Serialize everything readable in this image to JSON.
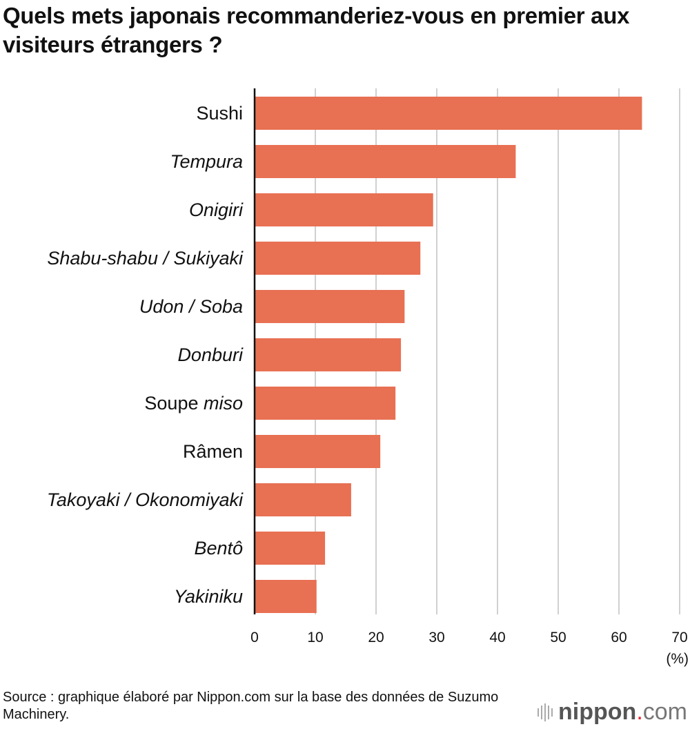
{
  "title": "Quels mets japonais recommanderiez-vous en premier aux visiteurs étrangers ?",
  "chart_data": {
    "type": "bar",
    "orientation": "horizontal",
    "title": "Quels mets japonais recommanderiez-vous en premier aux visiteurs étrangers ?",
    "categories": [
      [
        {
          "t": "Sushi",
          "i": false
        }
      ],
      [
        {
          "t": "Tempura",
          "i": true
        }
      ],
      [
        {
          "t": "Onigiri",
          "i": true
        }
      ],
      [
        {
          "t": "Shabu-shabu / Sukiyaki",
          "i": true
        }
      ],
      [
        {
          "t": "Udon / Soba",
          "i": true
        }
      ],
      [
        {
          "t": "Donburi",
          "i": true
        }
      ],
      [
        {
          "t": "Soupe ",
          "i": false
        },
        {
          "t": "miso",
          "i": true
        }
      ],
      [
        {
          "t": "Râmen",
          "i": false
        }
      ],
      [
        {
          "t": "Takoyaki / Okonomiyaki",
          "i": true
        }
      ],
      [
        {
          "t": "Bentô",
          "i": true
        }
      ],
      [
        {
          "t": "Yakiniku",
          "i": true
        }
      ]
    ],
    "values": [
      63.8,
      43.0,
      29.4,
      27.3,
      24.7,
      24.1,
      23.2,
      20.7,
      15.9,
      11.6,
      10.2
    ],
    "xlim": [
      0,
      70
    ],
    "xticks": [
      0,
      10,
      20,
      30,
      40,
      50,
      60,
      70
    ],
    "xunit": "(%)",
    "grid": true,
    "bar_color": "#E87053",
    "grid_color": "#d0d0d0"
  },
  "source": "Source : graphique élaboré par Nippon.com sur la base des données de Suzumo Machinery.",
  "logo": {
    "name": "nippon",
    "dot": ".",
    "suffix": "com"
  }
}
